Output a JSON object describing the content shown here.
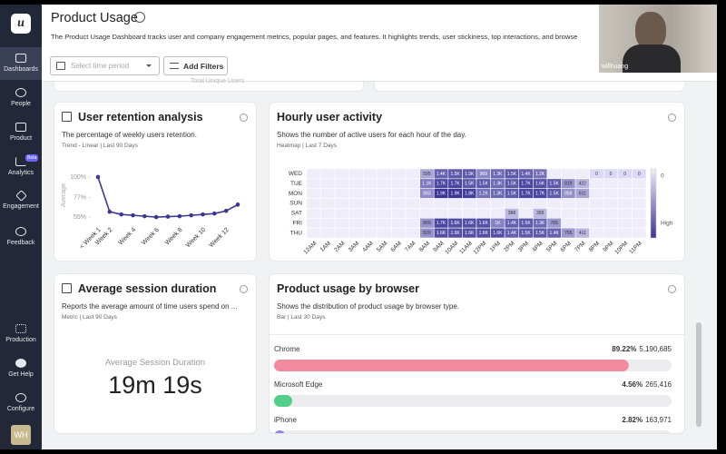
{
  "sidebar": {
    "logo": "u",
    "nav": [
      "Dashboards",
      "People",
      "Product",
      "Analytics",
      "Engagement",
      "Feedback"
    ],
    "badge": "Beta",
    "bottom": [
      "Production",
      "Get Help",
      "Configure"
    ],
    "avatar": "WH"
  },
  "header": {
    "title": "Product Usage",
    "description": "The Product Usage Dashboard tracks user and company engagement metrics, popular pages, and features. It highlights trends, user stickiness, top interactions, and browse",
    "date_placeholder": "Select time period",
    "filter_button": "Add Filters"
  },
  "video": {
    "name": "willhuang"
  },
  "partial_card": {
    "label": "Total Unique Users"
  },
  "cards": [
    {
      "title": "User retention analysis",
      "description": "The percentage of weekly users retention.",
      "meta": "Trend - Linear | Last 90 Days"
    },
    {
      "title": "Hourly user activity",
      "description": "Shows the number of active users for each hour of the day.",
      "meta": "Heatmap | Last 7 Days"
    },
    {
      "title": "Average session duration",
      "description": "Reports the average amount of time users spend on ...",
      "meta": "Metric | Last 90 Days"
    },
    {
      "title": "Product usage by browser",
      "description": "Shows the distribution of product usage by browser type.",
      "meta": "Bar | Last 30 Days"
    }
  ],
  "metric": {
    "label": "Average Session Duration",
    "value": "19m 19s"
  },
  "chart_data": [
    {
      "type": "line",
      "y_label": "Average",
      "categories": [
        "< Week 1",
        "Week 2",
        null,
        "Week 4",
        null,
        "Week 6",
        null,
        "Week 8",
        null,
        "Week 10",
        null,
        "Week 12",
        null
      ],
      "values": [
        100,
        61,
        58,
        57,
        56,
        55,
        55.5,
        56,
        57,
        58,
        59,
        62,
        69
      ],
      "color": "#3b3790",
      "ylim": [
        50,
        103
      ],
      "yticks": [
        {
          "value": 55,
          "label": "55%"
        },
        {
          "value": 77,
          "label": "77%"
        },
        {
          "value": 100,
          "label": "100%"
        }
      ]
    },
    {
      "type": "heatmap",
      "rows": [
        "WED",
        "TUE",
        "MON",
        "SUN",
        "SAT",
        "FRI",
        "THU"
      ],
      "columns": [
        "12AM",
        "1AM",
        "2AM",
        "3AM",
        "4AM",
        "5AM",
        "6AM",
        "7AM",
        "8AM",
        "9AM",
        "10AM",
        "11AM",
        "12PM",
        "1PM",
        "2PM",
        "3PM",
        "4PM",
        "5PM",
        "6PM",
        "7PM",
        "8PM",
        "9PM",
        "10PM",
        "11PM"
      ],
      "values": [
        [
          null,
          null,
          null,
          null,
          null,
          null,
          null,
          null,
          595,
          1400,
          1500,
          1500,
          969,
          1300,
          1500,
          1400,
          1200,
          null,
          null,
          null,
          0,
          0,
          0,
          0
        ],
        [
          null,
          null,
          null,
          null,
          null,
          null,
          null,
          null,
          1100,
          1700,
          1700,
          1500,
          1500,
          1300,
          1500,
          1700,
          1600,
          1500,
          819,
          422,
          null,
          null,
          null,
          null
        ],
        [
          null,
          null,
          null,
          null,
          null,
          null,
          null,
          null,
          893,
          1900,
          1900,
          1800,
          1200,
          1300,
          1500,
          1700,
          1700,
          1500,
          858,
          611,
          null,
          null,
          null,
          null
        ],
        [
          null,
          null,
          null,
          null,
          null,
          null,
          null,
          null,
          null,
          null,
          null,
          null,
          null,
          null,
          null,
          null,
          null,
          null,
          null,
          null,
          null,
          null,
          null,
          null
        ],
        [
          null,
          null,
          null,
          null,
          null,
          null,
          null,
          null,
          null,
          null,
          null,
          null,
          null,
          null,
          388,
          null,
          399,
          null,
          null,
          null,
          null,
          null,
          null,
          null
        ],
        [
          null,
          null,
          null,
          null,
          null,
          null,
          null,
          null,
          809,
          1700,
          1600,
          1600,
          1600,
          1000,
          1400,
          1500,
          1300,
          765,
          null,
          null,
          null,
          null,
          null,
          null
        ],
        [
          null,
          null,
          null,
          null,
          null,
          null,
          null,
          null,
          820,
          1600,
          1600,
          1600,
          1600,
          1600,
          1400,
          1500,
          1500,
          1400,
          755,
          411,
          null,
          null,
          null,
          null
        ]
      ],
      "value_labels": [
        [
          null,
          null,
          null,
          null,
          null,
          null,
          null,
          null,
          "595",
          "1.4K",
          "1.5K",
          "1.5K",
          "969",
          "1.3K",
          "1.5K",
          "1.4K",
          "1.2K",
          null,
          null,
          null,
          "0",
          "0",
          "0",
          "0"
        ],
        [
          null,
          null,
          null,
          null,
          null,
          null,
          null,
          null,
          "1.1K",
          "1.7K",
          "1.7K",
          "1.5K",
          "1.5K",
          "1.3K",
          "1.5K",
          "1.7K",
          "1.6K",
          "1.5K",
          "819",
          "422",
          null,
          null,
          null,
          null
        ],
        [
          null,
          null,
          null,
          null,
          null,
          null,
          null,
          null,
          "893",
          "1.9K",
          "1.9K",
          "1.8K",
          "1.2K",
          "1.3K",
          "1.5K",
          "1.7K",
          "1.7K",
          "1.5K",
          "858",
          "611",
          null,
          null,
          null,
          null
        ],
        [
          null,
          null,
          null,
          null,
          null,
          null,
          null,
          null,
          null,
          null,
          null,
          null,
          null,
          null,
          null,
          null,
          null,
          null,
          null,
          null,
          null,
          null,
          null,
          null
        ],
        [
          null,
          null,
          null,
          null,
          null,
          null,
          null,
          null,
          null,
          null,
          null,
          null,
          null,
          null,
          "388",
          null,
          "399",
          null,
          null,
          null,
          null,
          null,
          null,
          null
        ],
        [
          null,
          null,
          null,
          null,
          null,
          null,
          null,
          null,
          "809",
          "1.7K",
          "1.6K",
          "1.6K",
          "1.6K",
          "1K",
          "1.4K",
          "1.5K",
          "1.3K",
          "765",
          null,
          null,
          null,
          null,
          null,
          null
        ],
        [
          null,
          null,
          null,
          null,
          null,
          null,
          null,
          null,
          "820",
          "1.6K",
          "1.6K",
          "1.6K",
          "1.6K",
          "1.6K",
          "1.4K",
          "1.5K",
          "1.5K",
          "1.4K",
          "755",
          "411",
          null,
          null,
          null,
          null
        ]
      ],
      "legend_labels": [
        "0",
        "High"
      ],
      "low_color": "#dcd9f6",
      "high_color": "#3b3596",
      "empty_color": "#eeedf9"
    },
    {
      "type": "bar",
      "orientation": "horizontal",
      "categories": [
        "Chrome",
        "Microsoft Edge",
        "iPhone"
      ],
      "values": [
        89.22,
        4.56,
        2.82
      ],
      "value_labels": [
        "89.22%",
        "4.56%",
        "2.82%"
      ],
      "counts": [
        "5,190,685",
        "265,416",
        "163,971"
      ],
      "colors": [
        "#f08a9c",
        "#52d08a",
        "#8b83ee"
      ],
      "xlim": [
        0,
        100
      ]
    }
  ]
}
